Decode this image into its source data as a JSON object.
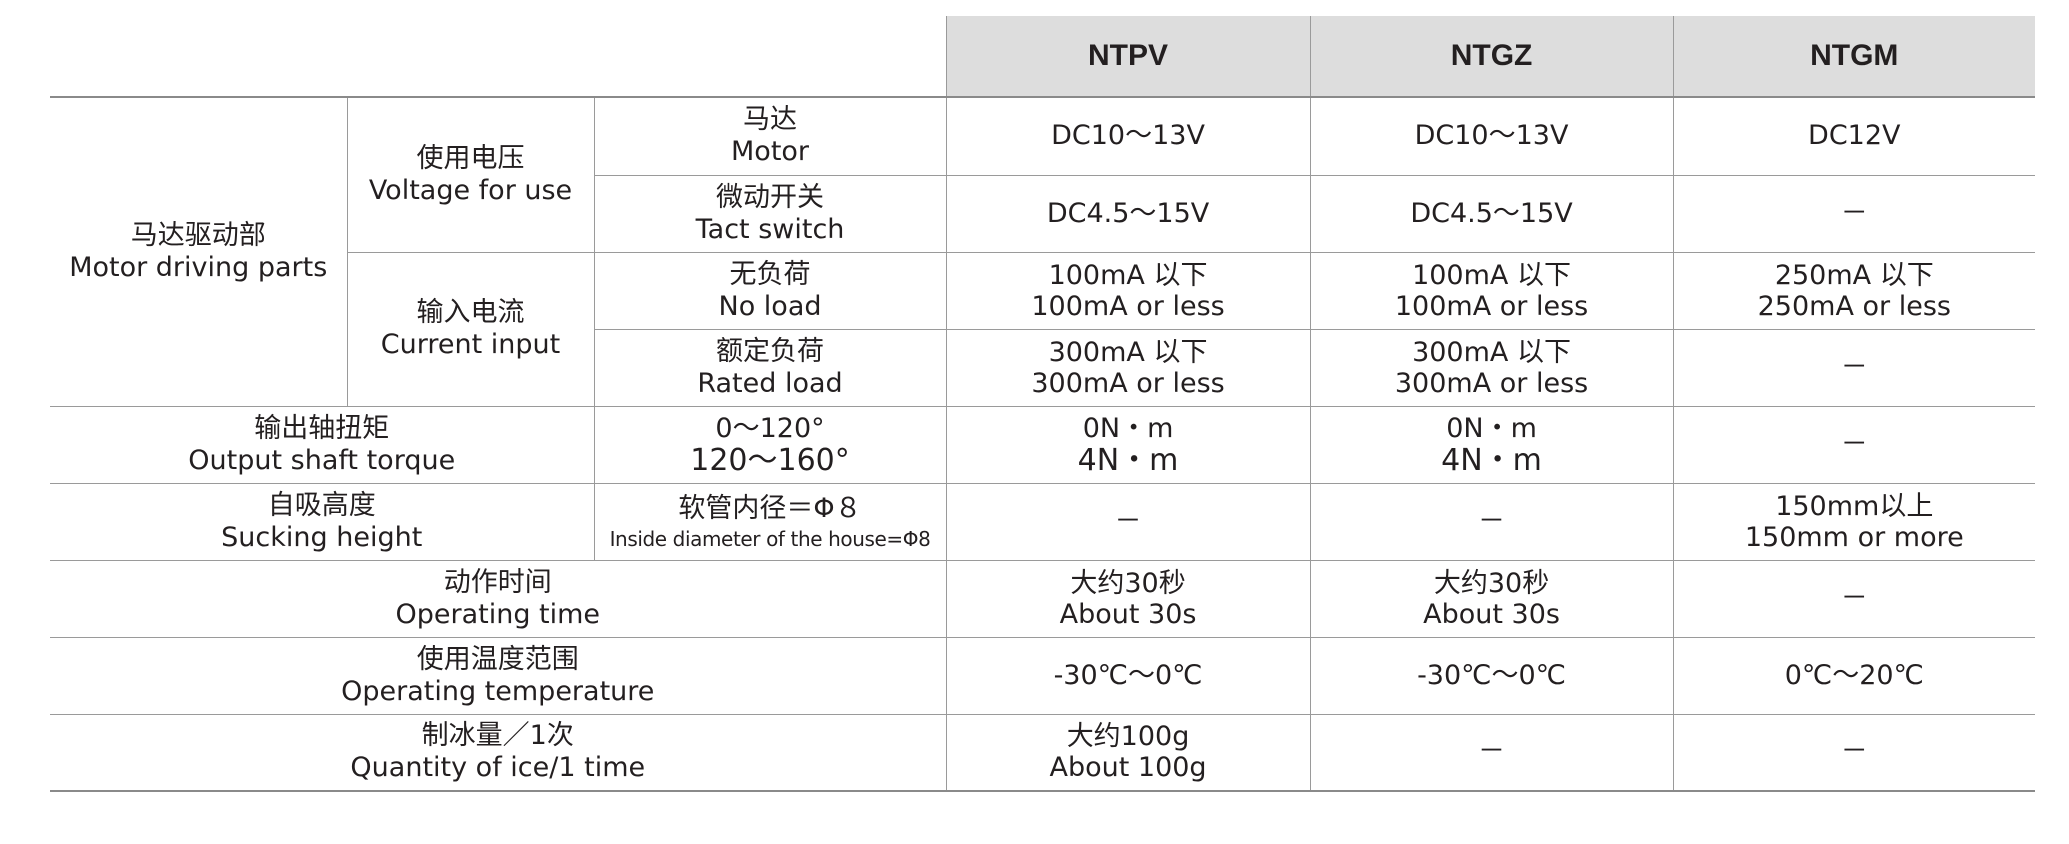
{
  "headers": {
    "col1": "NTPV",
    "col2": "NTGZ",
    "col3": "NTGM"
  },
  "rows": {
    "motor_parts": {
      "zh": "马达驱动部",
      "en": "Motor driving parts"
    },
    "voltage": {
      "zh": "使用电压",
      "en": "Voltage for use"
    },
    "motor": {
      "zh": "马达",
      "en": "Motor",
      "v1": "DC10～13V",
      "v2": "DC10～13V",
      "v3": "DC12V"
    },
    "tact": {
      "zh": "微动开关",
      "en": "Tact switch",
      "v1": "DC4.5～15V",
      "v2": "DC4.5～15V",
      "v3": "－"
    },
    "current": {
      "zh": "输入电流",
      "en": "Current input"
    },
    "noload": {
      "zh": "无负荷",
      "en": "No load",
      "v1a": "100mA 以下",
      "v1b": "100mA or less",
      "v2a": "100mA 以下",
      "v2b": "100mA or less",
      "v3a": "250mA 以下",
      "v3b": "250mA or less"
    },
    "rated": {
      "zh": "额定负荷",
      "en": "Rated load",
      "v1a": "300mA 以下",
      "v1b": "300mA or less",
      "v2a": "300mA 以下",
      "v2b": "300mA or less",
      "v3": "－"
    },
    "torque": {
      "zh": "输出轴扭矩",
      "en": "Output shaft torque",
      "cond_a": "0～120°",
      "cond_b": "120～160°",
      "v1a": "0N・m",
      "v1b": "4N・m",
      "v2a": "0N・m",
      "v2b": "4N・m",
      "v3": "－"
    },
    "suck": {
      "zh": "自吸高度",
      "en": "Sucking height",
      "cond_zh": "软管内径＝Φ８",
      "cond_en": "Inside diameter of the house=Φ8",
      "v1": "－",
      "v2": "－",
      "v3a": "150mm以上",
      "v3b": "150mm or more"
    },
    "optime": {
      "zh": "动作时间",
      "en": "Operating time",
      "v1a": "大约30秒",
      "v1b": "About 30s",
      "v2a": "大约30秒",
      "v2b": "About 30s",
      "v3": "－"
    },
    "optemp": {
      "zh": "使用温度范围",
      "en": "Operating temperature",
      "v1": "-30℃～0℃",
      "v2": "-30℃～0℃",
      "v3": "0℃～20℃"
    },
    "ice": {
      "zh": "制冰量／1次",
      "en": "Quantity of ice/1 time",
      "v1a": "大约100g",
      "v1b": "About 100g",
      "v2": "－",
      "v3": "－"
    }
  }
}
